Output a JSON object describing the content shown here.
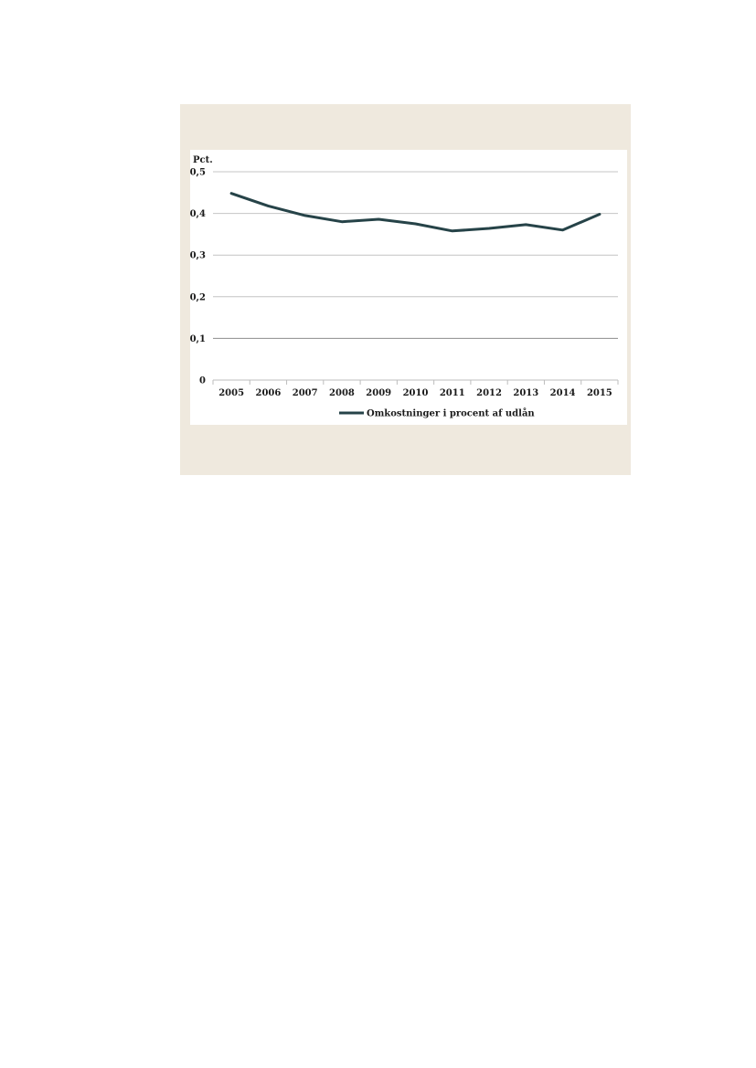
{
  "chart_data": {
    "type": "line",
    "y_unit_label": "Pct.",
    "categories": [
      "2005",
      "2006",
      "2007",
      "2008",
      "2009",
      "2010",
      "2011",
      "2012",
      "2013",
      "2014",
      "2015"
    ],
    "series": [
      {
        "name": "Omkostninger i procent af udlån",
        "values": [
          0.448,
          0.418,
          0.395,
          0.38,
          0.386,
          0.375,
          0.358,
          0.364,
          0.373,
          0.36,
          0.398
        ],
        "color": "#264348"
      }
    ],
    "ylim": [
      0,
      0.5
    ],
    "yticks": [
      0,
      0.1,
      0.2,
      0.3,
      0.4,
      0.5
    ],
    "ytick_labels": [
      "0",
      "0,1",
      "0,2",
      "0,3",
      "0,4",
      "0,5"
    ],
    "grid": true,
    "legend_position": "bottom"
  }
}
